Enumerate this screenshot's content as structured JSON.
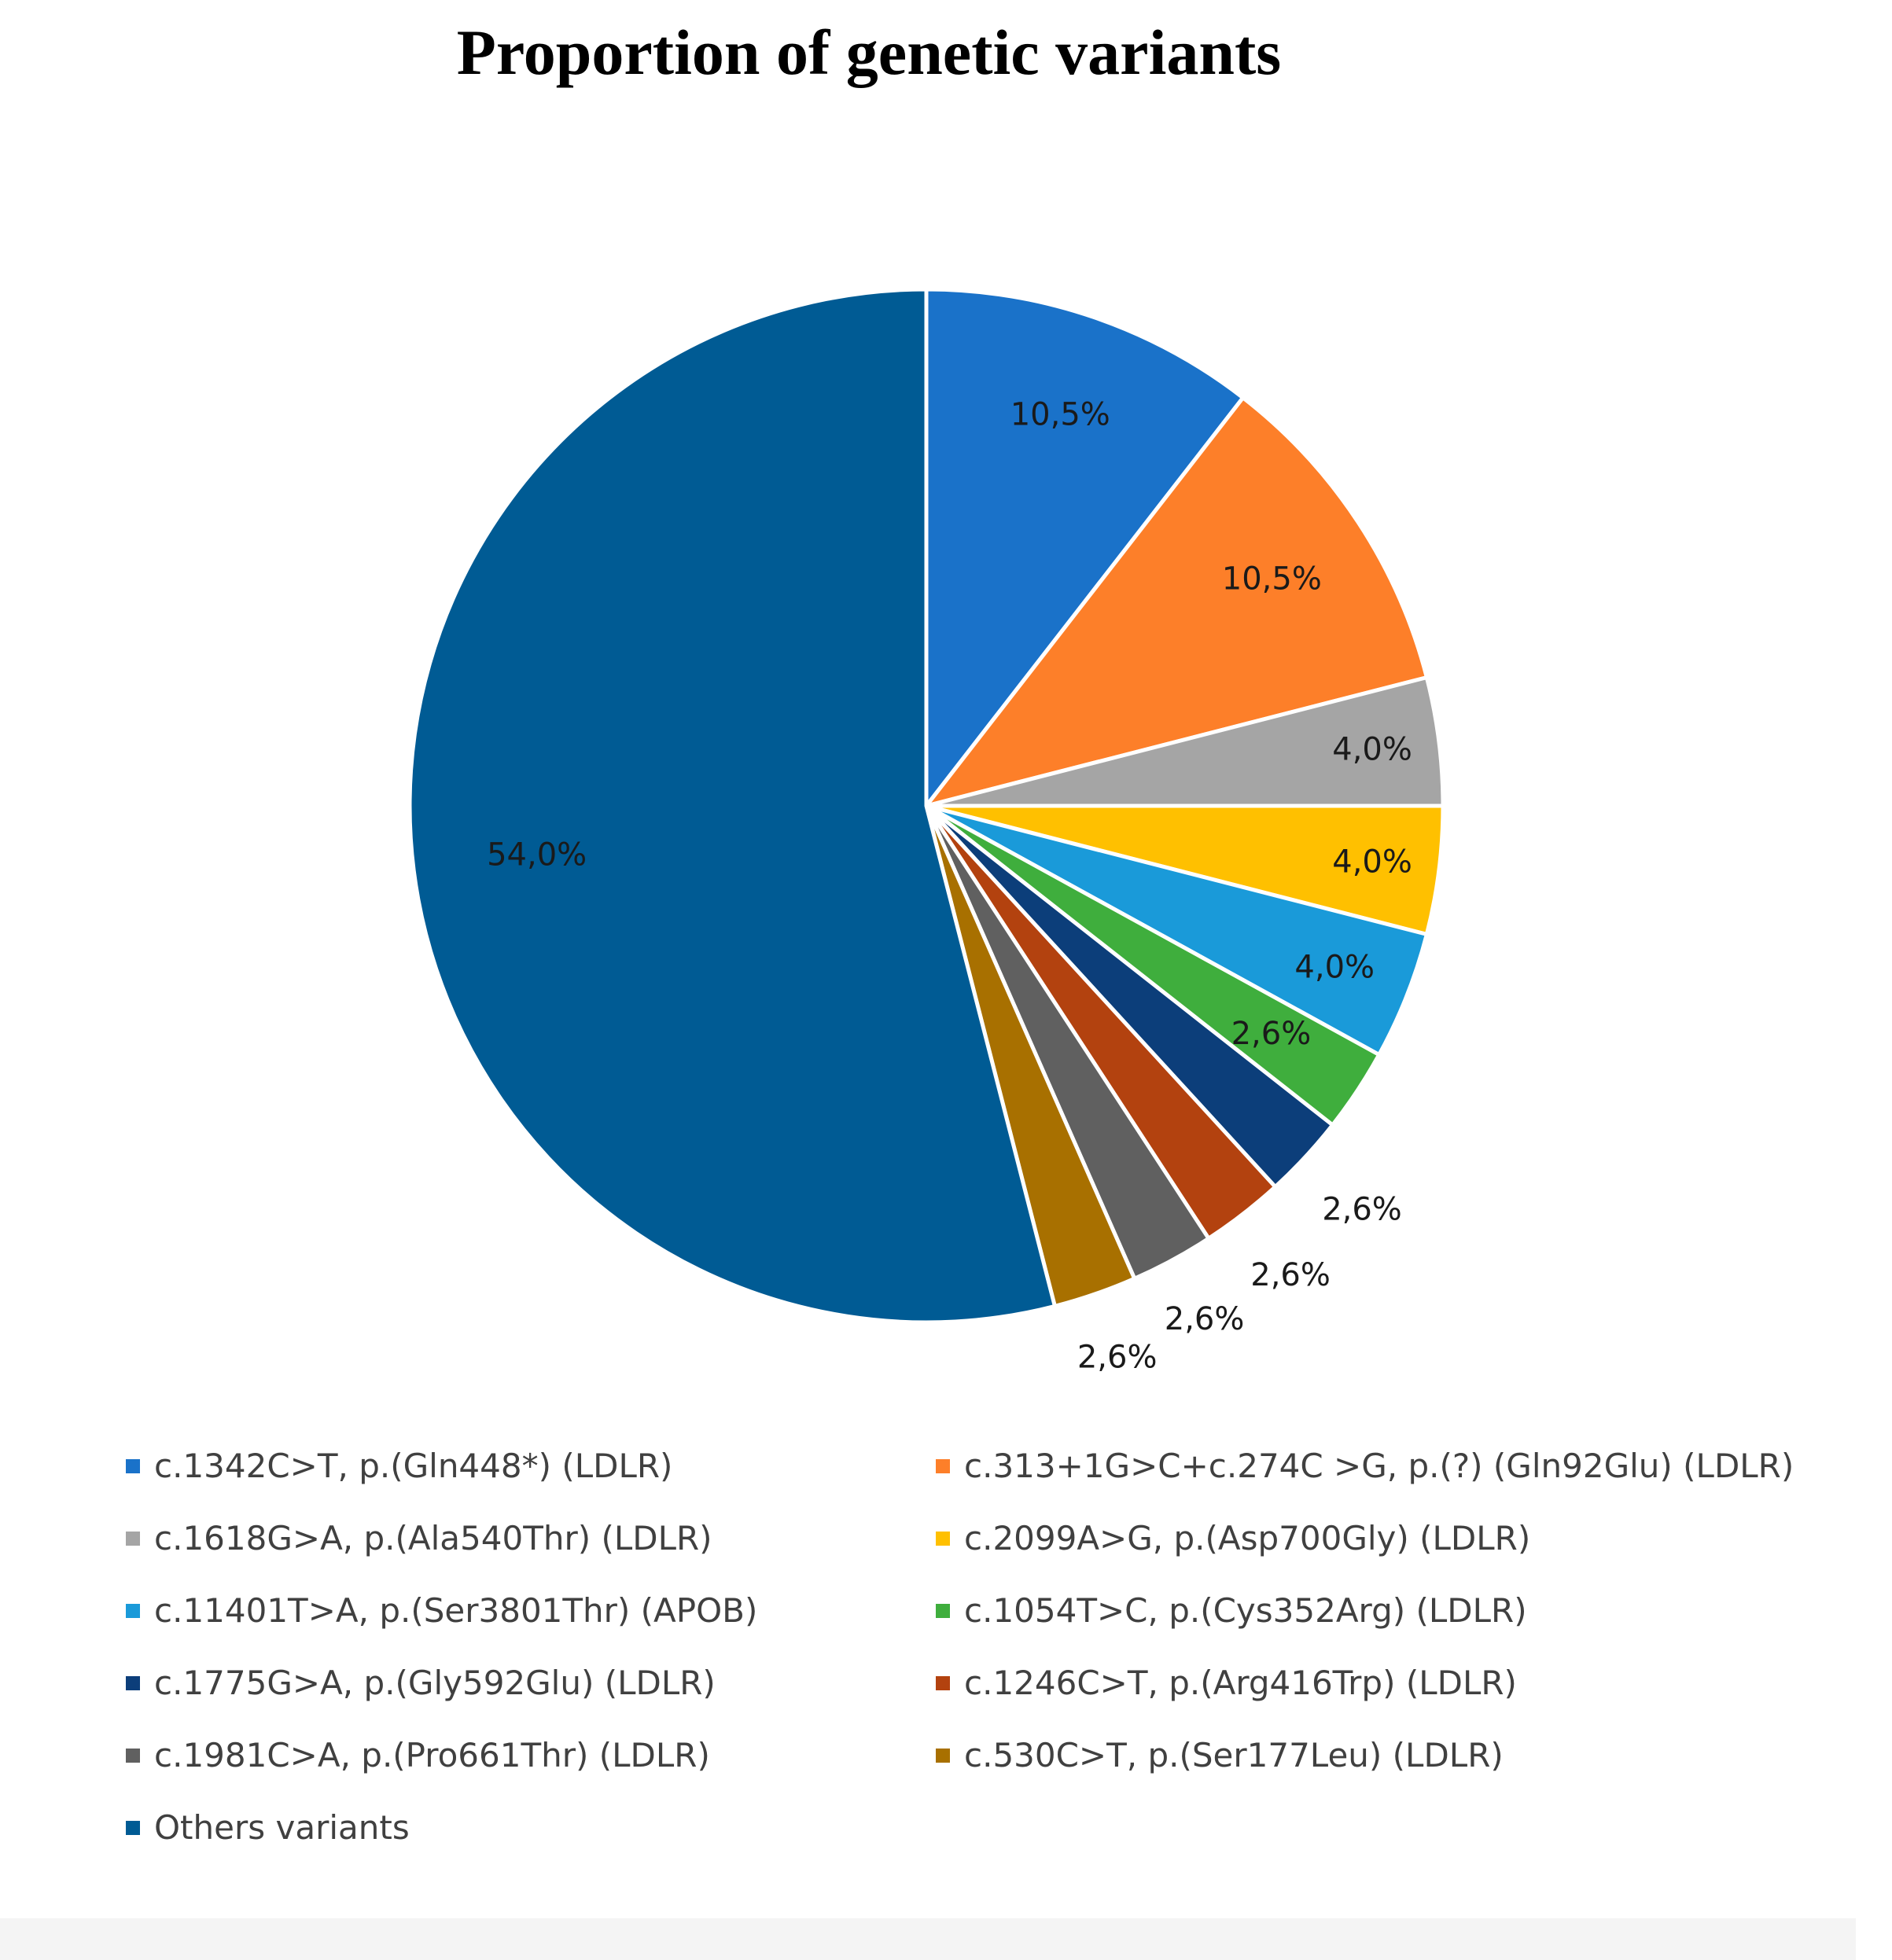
{
  "chart_data": {
    "type": "pie",
    "title": "Proportion of genetic variants",
    "slices": [
      {
        "label": "c.1342C>T, p.(Gln448*) (LDLR)",
        "value": 10.5,
        "value_label": "10,5%",
        "color": "#1a72c9"
      },
      {
        "label": "c.313+1G>C+c.274C >G, p.(?) (Gln92Glu) (LDLR)",
        "value": 10.5,
        "value_label": "10,5%",
        "color": "#fd7f29"
      },
      {
        "label": "c.1618G>A, p.(Ala540Thr) (LDLR)",
        "value": 4.0,
        "value_label": "4,0%",
        "color": "#a5a5a5"
      },
      {
        "label": "c.2099A>G, p.(Asp700Gly) (LDLR)",
        "value": 4.0,
        "value_label": "4,0%",
        "color": "#ffc000"
      },
      {
        "label": "c.11401T>A, p.(Ser3801Thr) (APOB)",
        "value": 4.0,
        "value_label": "4,0%",
        "color": "#1a9ad9"
      },
      {
        "label": "c.1054T>C, p.(Cys352Arg) (LDLR)",
        "value": 2.6,
        "value_label": "2,6%",
        "color": "#3fae3d"
      },
      {
        "label": "c.1775G>A, p.(Gly592Glu) (LDLR)",
        "value": 2.6,
        "value_label": "2,6%",
        "color": "#0c3e7a"
      },
      {
        "label": "c.1246C>T, p.(Arg416Trp) (LDLR)",
        "value": 2.6,
        "value_label": "2,6%",
        "color": "#b3420f"
      },
      {
        "label": "c.1981C>A, p.(Pro661Thr) (LDLR)",
        "value": 2.6,
        "value_label": "2,6%",
        "color": "#606060"
      },
      {
        "label": "c.530C>T, p.(Ser177Leu) (LDLR)",
        "value": 2.6,
        "value_label": "2,6%",
        "color": "#a87000"
      },
      {
        "label": "Others variants",
        "value": 54.0,
        "value_label": "54,0%",
        "color": "#005b94"
      }
    ],
    "legend_position": "bottom"
  }
}
